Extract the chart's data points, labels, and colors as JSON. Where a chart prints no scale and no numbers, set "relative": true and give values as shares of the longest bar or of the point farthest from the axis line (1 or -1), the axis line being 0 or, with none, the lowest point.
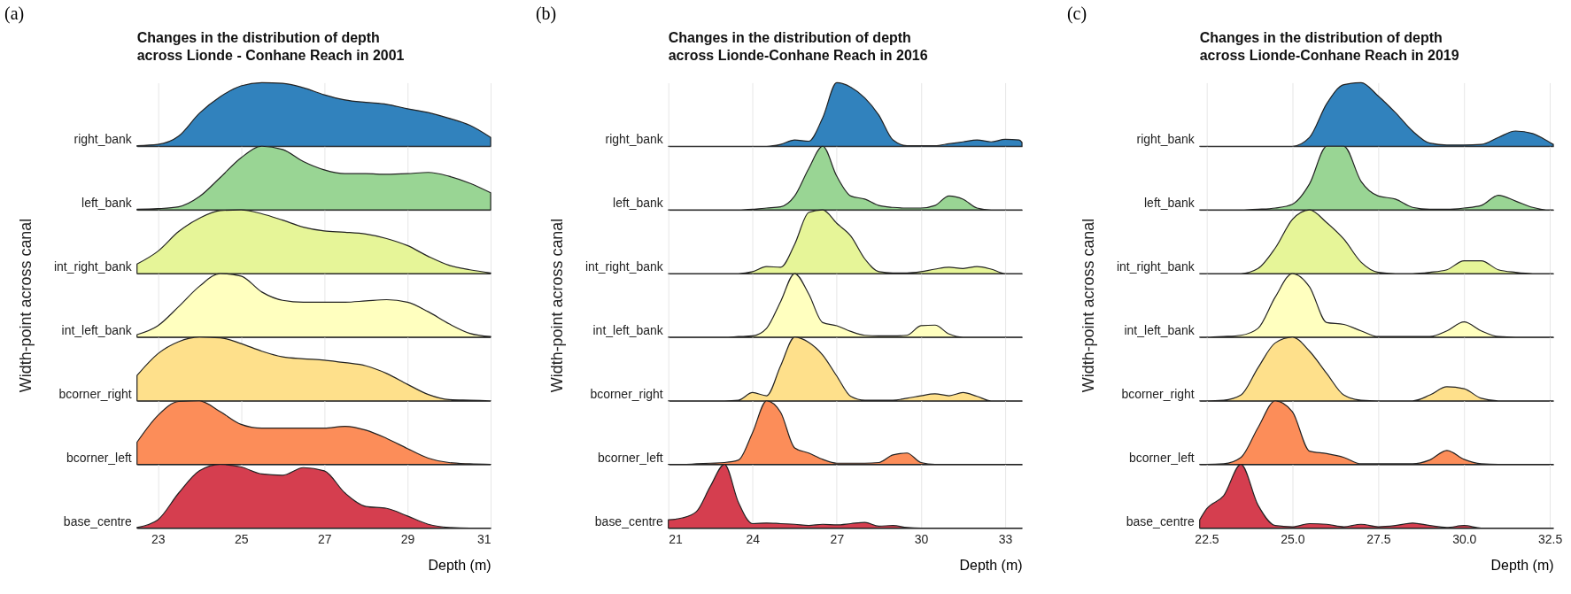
{
  "chart_data": [
    {
      "type": "area",
      "relative": true,
      "title": "Changes in the distribution of depth\nacross Lionde - Conhane Reach in 2001",
      "annotations": [
        "(a)"
      ],
      "grid": "x",
      "tick_labels": false,
      "xlim": [
        22.5,
        31
      ],
      "xticks": [
        23,
        25,
        27,
        29,
        31
      ],
      "x": [
        22.5,
        23,
        23.5,
        24,
        24.5,
        25,
        25.5,
        26,
        26.5,
        27,
        27.5,
        28,
        28.5,
        29,
        29.5,
        30,
        30.5,
        31
      ],
      "series": [
        {
          "name": "right_bank",
          "color": "#3182bd",
          "values": [
            0.01,
            0.03,
            0.16,
            0.52,
            0.78,
            0.95,
            1,
            0.99,
            0.92,
            0.81,
            0.73,
            0.69,
            0.66,
            0.59,
            0.53,
            0.44,
            0.33,
            0.14
          ]
        }
      ]
    },
    {
      "type": "area",
      "relative": true,
      "grid": "x",
      "tick_labels": false,
      "xlim": [
        22.5,
        31
      ],
      "xticks": [
        23,
        25,
        27,
        29,
        31
      ],
      "x": [
        22.5,
        23,
        23.5,
        24,
        24.5,
        25,
        25.5,
        26,
        26.5,
        27,
        27.5,
        28,
        28.5,
        29,
        29.5,
        30,
        30.5,
        31
      ],
      "series": [
        {
          "name": "left_bank",
          "color": "#99d594",
          "values": [
            0.01,
            0.02,
            0.05,
            0.21,
            0.51,
            0.82,
            1,
            0.95,
            0.76,
            0.63,
            0.57,
            0.57,
            0.56,
            0.57,
            0.59,
            0.53,
            0.42,
            0.27
          ]
        }
      ]
    },
    {
      "type": "area",
      "relative": true,
      "grid": "x",
      "tick_labels": false,
      "xlim": [
        22.5,
        31
      ],
      "xticks": [
        23,
        25,
        27,
        29,
        31
      ],
      "x": [
        22.5,
        23,
        23.5,
        24,
        24.5,
        25,
        25.5,
        26,
        26.5,
        27,
        27.5,
        28,
        28.5,
        29,
        29.5,
        30,
        30.5,
        31
      ],
      "series": [
        {
          "name": "int_right_bank",
          "color": "#e6f598",
          "values": [
            0.15,
            0.35,
            0.66,
            0.87,
            0.99,
            1,
            0.94,
            0.84,
            0.73,
            0.67,
            0.65,
            0.62,
            0.55,
            0.44,
            0.27,
            0.13,
            0.06,
            0.01
          ]
        }
      ]
    },
    {
      "type": "area",
      "relative": true,
      "ylabel": "Width-point across canal",
      "grid": "x",
      "tick_labels": false,
      "xlim": [
        22.5,
        31
      ],
      "xticks": [
        23,
        25,
        27,
        29,
        31
      ],
      "x": [
        22.5,
        23,
        23.5,
        24,
        24.5,
        25,
        25.5,
        26,
        26.5,
        27,
        27.5,
        28,
        28.5,
        29,
        29.5,
        30,
        30.5,
        31
      ],
      "series": [
        {
          "name": "int_left_bank",
          "color": "#ffffbf",
          "values": [
            0.04,
            0.18,
            0.48,
            0.8,
            1,
            0.96,
            0.71,
            0.58,
            0.55,
            0.55,
            0.55,
            0.57,
            0.59,
            0.55,
            0.4,
            0.21,
            0.06,
            0.01
          ]
        }
      ]
    },
    {
      "type": "area",
      "relative": true,
      "grid": "x",
      "tick_labels": false,
      "xlim": [
        22.5,
        31
      ],
      "xticks": [
        23,
        25,
        27,
        29,
        31
      ],
      "x": [
        22.5,
        23,
        23.5,
        24,
        24.5,
        25,
        25.5,
        26,
        26.5,
        27,
        27.5,
        28,
        28.5,
        29,
        29.5,
        30,
        30.5,
        31
      ],
      "series": [
        {
          "name": "bcorner_right",
          "color": "#fee08b",
          "values": [
            0.4,
            0.74,
            0.93,
            1,
            0.99,
            0.9,
            0.78,
            0.69,
            0.66,
            0.64,
            0.6,
            0.55,
            0.43,
            0.26,
            0.1,
            0.02,
            0.01,
            0
          ]
        }
      ]
    },
    {
      "type": "area",
      "relative": true,
      "grid": "x",
      "tick_labels": false,
      "xlim": [
        22.5,
        31
      ],
      "xticks": [
        23,
        25,
        27,
        29,
        31
      ],
      "x": [
        22.5,
        23,
        23.5,
        24,
        24.5,
        25,
        25.5,
        26,
        26.5,
        27,
        27.5,
        28,
        28.5,
        29,
        29.5,
        30,
        30.5,
        31
      ],
      "series": [
        {
          "name": "bcorner_left",
          "color": "#fc8d59",
          "values": [
            0.35,
            0.77,
            0.99,
            1,
            0.83,
            0.63,
            0.57,
            0.57,
            0.57,
            0.57,
            0.6,
            0.54,
            0.41,
            0.25,
            0.1,
            0.03,
            0.01,
            0
          ]
        }
      ]
    },
    {
      "type": "area",
      "relative": true,
      "xlabel": "Depth (m)",
      "grid": "x",
      "tick_labels": "x",
      "xlim": [
        22.5,
        31
      ],
      "xticks": [
        23,
        25,
        27,
        29,
        31
      ],
      "x": [
        22.5,
        23,
        23.5,
        24,
        24.5,
        25,
        25.5,
        26,
        26.5,
        27,
        27.5,
        28,
        28.5,
        29,
        29.5,
        30,
        30.5,
        31
      ],
      "series": [
        {
          "name": "base_centre",
          "color": "#d53e4f",
          "values": [
            0.01,
            0.13,
            0.55,
            0.9,
            1,
            0.96,
            0.85,
            0.83,
            0.95,
            0.9,
            0.55,
            0.34,
            0.31,
            0.19,
            0.06,
            0.01,
            0,
            0
          ]
        }
      ]
    },
    {
      "type": "area",
      "relative": true,
      "title": "Changes in the distribution of depth\nacross Lionde-Conhane Reach in 2016",
      "annotations": [
        "(b)"
      ],
      "grid": "x",
      "tick_labels": false,
      "xlim": [
        21,
        33.6
      ],
      "xticks": [
        21,
        24,
        27,
        30,
        33
      ],
      "x": [
        21,
        21.5,
        22,
        22.5,
        23,
        23.5,
        24,
        24.5,
        25,
        25.5,
        26,
        26.5,
        27,
        27.5,
        28,
        28.5,
        29,
        29.5,
        30,
        30.5,
        31,
        31.5,
        32,
        32.5,
        33,
        33.5,
        33.6
      ],
      "series": [
        {
          "name": "right_bank",
          "color": "#3182bd",
          "values": [
            0,
            0,
            0,
            0,
            0,
            0,
            0,
            0,
            0.03,
            0.1,
            0.08,
            0.45,
            1,
            0.93,
            0.76,
            0.49,
            0.1,
            0.01,
            0.01,
            0.01,
            0.04,
            0.07,
            0.1,
            0.07,
            0.11,
            0.1,
            0.06
          ]
        }
      ]
    },
    {
      "type": "area",
      "relative": true,
      "grid": "x",
      "tick_labels": false,
      "xlim": [
        21,
        33.6
      ],
      "xticks": [
        21,
        24,
        27,
        30,
        33
      ],
      "x": [
        21,
        21.5,
        22,
        22.5,
        23,
        23.5,
        24,
        24.5,
        25,
        25.5,
        26,
        26.5,
        27,
        27.5,
        28,
        28.5,
        29,
        29.5,
        30,
        30.5,
        31,
        31.5,
        32,
        32.5,
        33,
        33.5,
        33.6
      ],
      "series": [
        {
          "name": "left_bank",
          "color": "#99d594",
          "values": [
            0,
            0,
            0,
            0,
            0,
            0,
            0.01,
            0.03,
            0.05,
            0.22,
            0.65,
            1,
            0.53,
            0.22,
            0.17,
            0.07,
            0.04,
            0.03,
            0.03,
            0.07,
            0.22,
            0.17,
            0.03,
            0,
            0,
            0,
            0
          ]
        }
      ]
    },
    {
      "type": "area",
      "relative": true,
      "grid": "x",
      "tick_labels": false,
      "xlim": [
        21,
        33.6
      ],
      "xticks": [
        21,
        24,
        27,
        30,
        33
      ],
      "x": [
        21,
        21.5,
        22,
        22.5,
        23,
        23.5,
        24,
        24.5,
        25,
        25.5,
        26,
        26.5,
        27,
        27.5,
        28,
        28.5,
        29,
        29.5,
        30,
        30.5,
        31,
        31.5,
        32,
        32.5,
        33,
        33.5,
        33.6
      ],
      "series": [
        {
          "name": "int_right_bank",
          "color": "#e6f598",
          "values": [
            0,
            0,
            0,
            0,
            0,
            0,
            0.03,
            0.11,
            0.1,
            0.46,
            0.96,
            1,
            0.79,
            0.59,
            0.23,
            0.03,
            0.01,
            0.01,
            0.03,
            0.07,
            0.1,
            0.08,
            0.11,
            0.07,
            0,
            0,
            0
          ]
        }
      ]
    },
    {
      "type": "area",
      "relative": true,
      "ylabel": "Width-point across canal",
      "grid": "x",
      "tick_labels": false,
      "xlim": [
        21,
        33.6
      ],
      "xticks": [
        21,
        24,
        27,
        30,
        33
      ],
      "x": [
        21,
        21.5,
        22,
        22.5,
        23,
        23.5,
        24,
        24.5,
        25,
        25.5,
        26,
        26.5,
        27,
        27.5,
        28,
        28.5,
        29,
        29.5,
        30,
        30.5,
        31,
        31.5,
        32,
        32.5,
        33,
        33.5,
        33.6
      ],
      "series": [
        {
          "name": "int_left_bank",
          "color": "#ffffbf",
          "values": [
            0,
            0,
            0,
            0,
            0,
            0.01,
            0.02,
            0.14,
            0.56,
            1,
            0.68,
            0.23,
            0.18,
            0.09,
            0.03,
            0.02,
            0.02,
            0.03,
            0.18,
            0.19,
            0.05,
            0,
            0,
            0,
            0,
            0,
            0
          ]
        }
      ]
    },
    {
      "type": "area",
      "relative": true,
      "grid": "x",
      "tick_labels": false,
      "xlim": [
        21,
        33.6
      ],
      "xticks": [
        21,
        24,
        27,
        30,
        33
      ],
      "x": [
        21,
        21.5,
        22,
        22.5,
        23,
        23.5,
        24,
        24.5,
        25,
        25.5,
        26,
        26.5,
        27,
        27.5,
        28,
        28.5,
        29,
        29.5,
        30,
        30.5,
        31,
        31.5,
        32,
        32.5,
        33,
        33.5,
        33.6
      ],
      "series": [
        {
          "name": "bcorner_right",
          "color": "#fee08b",
          "values": [
            0,
            0,
            0,
            0,
            0,
            0.01,
            0.13,
            0.08,
            0.55,
            1,
            0.92,
            0.72,
            0.39,
            0.07,
            0.01,
            0.01,
            0.01,
            0.04,
            0.08,
            0.11,
            0.08,
            0.13,
            0.07,
            0,
            0,
            0,
            0
          ]
        }
      ]
    },
    {
      "type": "area",
      "relative": true,
      "grid": "x",
      "tick_labels": false,
      "xlim": [
        21,
        33.6
      ],
      "xticks": [
        21,
        24,
        27,
        30,
        33
      ],
      "x": [
        21,
        21.5,
        22,
        22.5,
        23,
        23.5,
        24,
        24.5,
        25,
        25.5,
        26,
        26.5,
        27,
        27.5,
        28,
        28.5,
        29,
        29.5,
        30,
        30.5,
        31,
        31.5,
        32,
        32.5,
        33,
        33.5,
        33.6
      ],
      "series": [
        {
          "name": "bcorner_left",
          "color": "#fc8d59",
          "values": [
            0,
            0,
            0.01,
            0.02,
            0.03,
            0.07,
            0.5,
            1,
            0.82,
            0.26,
            0.18,
            0.08,
            0.02,
            0.02,
            0.02,
            0.03,
            0.15,
            0.18,
            0.03,
            0,
            0,
            0,
            0,
            0,
            0,
            0,
            0
          ]
        }
      ]
    },
    {
      "type": "area",
      "relative": true,
      "xlabel": "Depth (m)",
      "grid": "x",
      "tick_labels": "x",
      "xlim": [
        21,
        33.6
      ],
      "xticks": [
        21,
        24,
        27,
        30,
        33
      ],
      "x": [
        21,
        21.5,
        22,
        22.5,
        23,
        23.5,
        24,
        24.5,
        25,
        25.5,
        26,
        26.5,
        27,
        27.5,
        28,
        28.5,
        29,
        29.5,
        30,
        30.5,
        31,
        31.5,
        32,
        32.5,
        33,
        33.5,
        33.6
      ],
      "series": [
        {
          "name": "base_centre",
          "color": "#d53e4f",
          "values": [
            0.13,
            0.16,
            0.26,
            0.66,
            1,
            0.4,
            0.07,
            0.08,
            0.07,
            0.06,
            0.04,
            0.06,
            0.05,
            0.07,
            0.09,
            0.03,
            0.04,
            0.01,
            0,
            0,
            0,
            0,
            0,
            0,
            0,
            0,
            0
          ]
        }
      ]
    },
    {
      "type": "area",
      "relative": true,
      "title": "Changes in the distribution of depth\nacross Lionde-Conhane Reach in 2019",
      "annotations": [
        "(c)"
      ],
      "grid": "x",
      "tick_labels": false,
      "xlim": [
        22.3,
        32.6
      ],
      "xticks": [
        {
          "value": 22.5,
          "label": null
        },
        {
          "value": 25,
          "label": null
        },
        {
          "value": 27.5,
          "label": null
        },
        {
          "value": 30,
          "label": null
        },
        {
          "value": 32.5,
          "label": null
        }
      ],
      "x": [
        22.3,
        22.5,
        23,
        23.5,
        24,
        24.5,
        25,
        25.5,
        26,
        26.5,
        27,
        27.5,
        28,
        28.5,
        29,
        29.5,
        30,
        30.5,
        31,
        31.5,
        32,
        32.5,
        32.6
      ],
      "series": [
        {
          "name": "right_bank",
          "color": "#3182bd",
          "values": [
            0,
            0,
            0,
            0,
            0,
            0,
            0,
            0.14,
            0.67,
            0.97,
            1,
            0.79,
            0.53,
            0.24,
            0.05,
            0.02,
            0.02,
            0.03,
            0.14,
            0.24,
            0.2,
            0.06,
            0.03
          ]
        }
      ]
    },
    {
      "type": "area",
      "relative": true,
      "grid": "x",
      "tick_labels": false,
      "xlim": [
        22.3,
        32.6
      ],
      "xticks": [
        {
          "value": 22.5,
          "label": null
        },
        {
          "value": 25,
          "label": null
        },
        {
          "value": 27.5,
          "label": null
        },
        {
          "value": 30,
          "label": null
        },
        {
          "value": 32.5,
          "label": null
        }
      ],
      "x": [
        22.3,
        22.5,
        23,
        23.5,
        24,
        24.5,
        25,
        25.5,
        26,
        26.5,
        27,
        27.5,
        28,
        28.5,
        29,
        29.5,
        30,
        30.5,
        31,
        31.5,
        32,
        32.5,
        32.6
      ],
      "series": [
        {
          "name": "left_bank",
          "color": "#99d594",
          "values": [
            0,
            0,
            0,
            0,
            0.01,
            0.03,
            0.09,
            0.41,
            1,
            1,
            0.45,
            0.22,
            0.17,
            0.04,
            0.01,
            0.01,
            0.03,
            0.07,
            0.23,
            0.14,
            0.04,
            0,
            0
          ]
        }
      ]
    },
    {
      "type": "area",
      "relative": true,
      "grid": "x",
      "tick_labels": false,
      "xlim": [
        22.3,
        32.6
      ],
      "xticks": [
        {
          "value": 22.5,
          "label": null
        },
        {
          "value": 25,
          "label": null
        },
        {
          "value": 27.5,
          "label": null
        },
        {
          "value": 30,
          "label": null
        },
        {
          "value": 32.5,
          "label": null
        }
      ],
      "x": [
        22.3,
        22.5,
        23,
        23.5,
        24,
        24.5,
        25,
        25.5,
        26,
        26.5,
        27,
        27.5,
        28,
        28.5,
        29,
        29.5,
        30,
        30.5,
        31,
        31.5,
        32,
        32.5,
        32.6
      ],
      "series": [
        {
          "name": "int_right_bank",
          "color": "#e6f598",
          "values": [
            0,
            0,
            0,
            0,
            0.08,
            0.4,
            0.85,
            1,
            0.8,
            0.54,
            0.18,
            0.02,
            0,
            0,
            0.02,
            0.06,
            0.2,
            0.2,
            0.06,
            0.02,
            0,
            0,
            0
          ]
        }
      ]
    },
    {
      "type": "area",
      "relative": true,
      "ylabel": "Width-point across canal",
      "grid": "x",
      "tick_labels": false,
      "xlim": [
        22.3,
        32.6
      ],
      "xticks": [
        {
          "value": 22.5,
          "label": null
        },
        {
          "value": 25,
          "label": null
        },
        {
          "value": 27.5,
          "label": null
        },
        {
          "value": 30,
          "label": null
        },
        {
          "value": 32.5,
          "label": null
        }
      ],
      "x": [
        22.3,
        22.5,
        23,
        23.5,
        24,
        24.5,
        25,
        25.5,
        26,
        26.5,
        27,
        27.5,
        28,
        28.5,
        29,
        29.5,
        30,
        30.5,
        31,
        31.5,
        32,
        32.5,
        32.6
      ],
      "series": [
        {
          "name": "int_left_bank",
          "color": "#ffffbf",
          "values": [
            0,
            0,
            0.01,
            0.03,
            0.14,
            0.63,
            1,
            0.79,
            0.23,
            0.2,
            0.1,
            0.01,
            0.01,
            0.01,
            0.01,
            0.1,
            0.24,
            0.1,
            0.01,
            0,
            0,
            0,
            0
          ]
        }
      ]
    },
    {
      "type": "area",
      "relative": true,
      "grid": "x",
      "tick_labels": false,
      "xlim": [
        22.3,
        32.6
      ],
      "xticks": [
        {
          "value": 22.5,
          "label": null
        },
        {
          "value": 25,
          "label": null
        },
        {
          "value": 27.5,
          "label": null
        },
        {
          "value": 30,
          "label": null
        },
        {
          "value": 32.5,
          "label": null
        }
      ],
      "x": [
        22.3,
        22.5,
        23,
        23.5,
        24,
        24.5,
        25,
        25.5,
        26,
        26.5,
        27,
        27.5,
        28,
        28.5,
        29,
        29.5,
        30,
        30.5,
        31,
        31.5,
        32,
        32.5,
        32.6
      ],
      "series": [
        {
          "name": "bcorner_right",
          "color": "#fee08b",
          "values": [
            0,
            0,
            0.01,
            0.09,
            0.52,
            0.91,
            1,
            0.78,
            0.43,
            0.09,
            0.01,
            0,
            0,
            0,
            0.09,
            0.22,
            0.19,
            0.04,
            0,
            0,
            0,
            0,
            0
          ]
        }
      ]
    },
    {
      "type": "area",
      "relative": true,
      "grid": "x",
      "tick_labels": false,
      "xlim": [
        22.3,
        32.6
      ],
      "xticks": [
        {
          "value": 22.5,
          "label": null
        },
        {
          "value": 25,
          "label": null
        },
        {
          "value": 27.5,
          "label": null
        },
        {
          "value": 30,
          "label": null
        },
        {
          "value": 32.5,
          "label": null
        }
      ],
      "x": [
        22.3,
        22.5,
        23,
        23.5,
        24,
        24.5,
        25,
        25.5,
        26,
        26.5,
        27,
        27.5,
        28,
        28.5,
        29,
        29.5,
        30,
        30.5,
        31,
        31.5,
        32,
        32.5,
        32.6
      ],
      "series": [
        {
          "name": "bcorner_left",
          "color": "#fc8d59",
          "values": [
            0,
            0,
            0.01,
            0.11,
            0.58,
            1,
            0.83,
            0.21,
            0.17,
            0.11,
            0.01,
            0.01,
            0.01,
            0.01,
            0.07,
            0.22,
            0.08,
            0.01,
            0,
            0,
            0,
            0,
            0
          ]
        }
      ]
    },
    {
      "type": "area",
      "relative": true,
      "xlabel": "Depth (m)",
      "grid": "x",
      "tick_labels": "x",
      "xlim": [
        22.3,
        32.6
      ],
      "xticks": [
        {
          "value": 22.5,
          "label": "22.5"
        },
        {
          "value": 25,
          "label": "25.0"
        },
        {
          "value": 27.5,
          "label": "27.5"
        },
        {
          "value": 30,
          "label": "30.0"
        },
        {
          "value": 32.5,
          "label": "32.5"
        }
      ],
      "x": [
        22.3,
        22.5,
        23,
        23.5,
        24,
        24.5,
        25,
        25.5,
        26,
        26.5,
        27,
        27.5,
        28,
        28.5,
        29,
        29.5,
        30,
        30.5,
        31,
        31.5,
        32,
        32.5,
        32.6
      ],
      "series": [
        {
          "name": "base_centre",
          "color": "#d53e4f",
          "values": [
            0.13,
            0.3,
            0.51,
            1,
            0.36,
            0.04,
            0.02,
            0.07,
            0.06,
            0.02,
            0.06,
            0.02,
            0.04,
            0.08,
            0.04,
            0.01,
            0.04,
            0,
            0,
            0,
            0,
            0,
            0
          ]
        }
      ]
    }
  ]
}
